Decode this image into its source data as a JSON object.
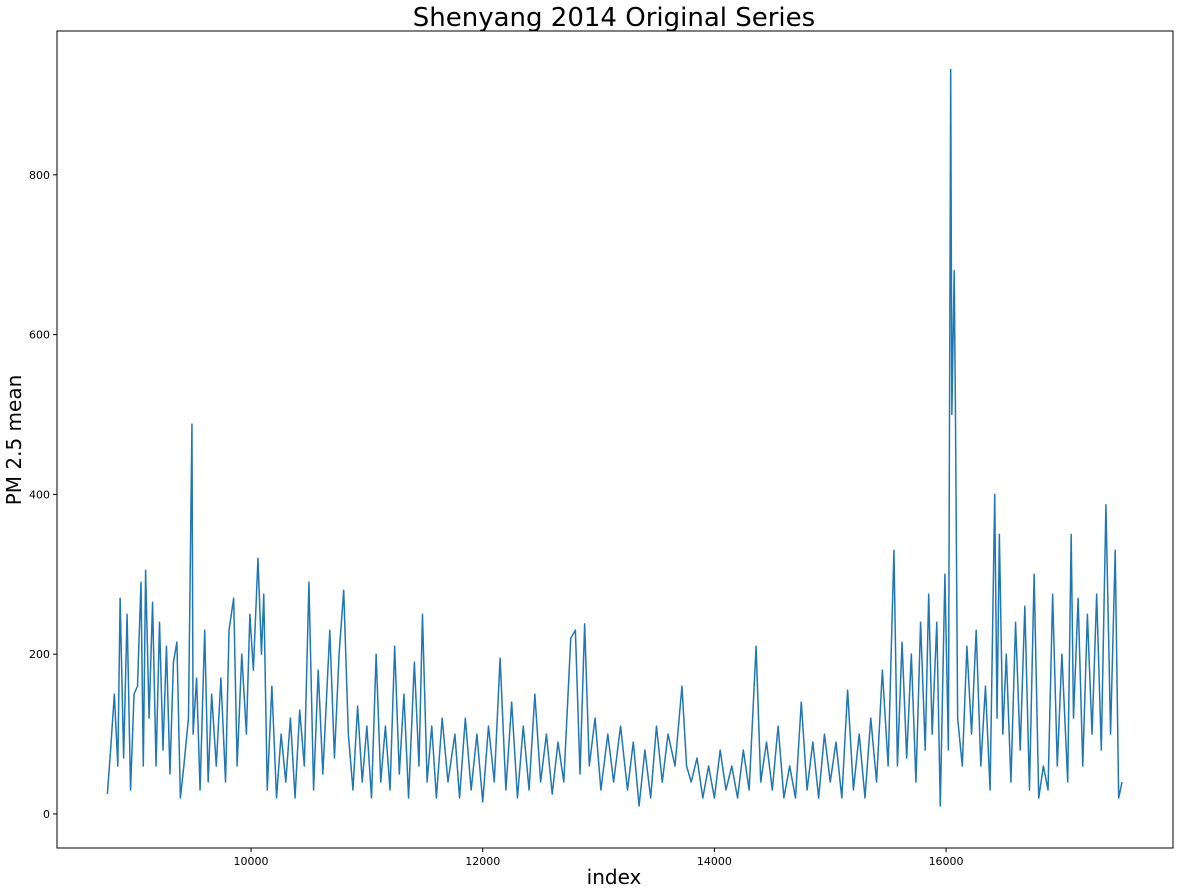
{
  "chart_data": {
    "type": "line",
    "title": "Shenyang 2014 Original Series",
    "x_label": "index",
    "y_label": "PM 2.5 mean",
    "x": [
      8760,
      8790,
      8820,
      8850,
      8870,
      8900,
      8930,
      8960,
      8990,
      9020,
      9050,
      9070,
      9090,
      9120,
      9150,
      9180,
      9210,
      9240,
      9270,
      9300,
      9330,
      9360,
      9390,
      9420,
      9460,
      9490,
      9500,
      9530,
      9560,
      9600,
      9630,
      9660,
      9700,
      9740,
      9780,
      9810,
      9850,
      9880,
      9920,
      9960,
      9990,
      10020,
      10060,
      10090,
      10110,
      10140,
      10180,
      10220,
      10260,
      10300,
      10340,
      10380,
      10420,
      10460,
      10500,
      10540,
      10580,
      10620,
      10680,
      10720,
      10760,
      10800,
      10840,
      10880,
      10920,
      10960,
      11000,
      11040,
      11080,
      11120,
      11160,
      11200,
      11240,
      11280,
      11320,
      11360,
      11410,
      11450,
      11480,
      11520,
      11560,
      11600,
      11650,
      11700,
      11760,
      11800,
      11850,
      11900,
      11950,
      12000,
      12050,
      12100,
      12150,
      12200,
      12250,
      12300,
      12350,
      12400,
      12450,
      12500,
      12550,
      12600,
      12650,
      12700,
      12760,
      12800,
      12840,
      12880,
      12920,
      12970,
      13020,
      13080,
      13130,
      13190,
      13250,
      13300,
      13350,
      13400,
      13450,
      13500,
      13550,
      13600,
      13660,
      13720,
      13760,
      13800,
      13850,
      13900,
      13950,
      14000,
      14050,
      14100,
      14150,
      14200,
      14250,
      14300,
      14360,
      14400,
      14450,
      14500,
      14550,
      14600,
      14650,
      14700,
      14750,
      14800,
      14850,
      14900,
      14950,
      15000,
      15050,
      15100,
      15150,
      15200,
      15250,
      15300,
      15350,
      15400,
      15450,
      15500,
      15550,
      15580,
      15620,
      15660,
      15700,
      15740,
      15780,
      15820,
      15850,
      15880,
      15920,
      15950,
      15990,
      16020,
      16040,
      16050,
      16070,
      16080,
      16100,
      16140,
      16180,
      16220,
      16260,
      16300,
      16340,
      16380,
      16420,
      16440,
      16460,
      16490,
      16520,
      16560,
      16600,
      16640,
      16680,
      16720,
      16760,
      16800,
      16840,
      16880,
      16920,
      16960,
      17000,
      17050,
      17080,
      17100,
      17140,
      17180,
      17220,
      17260,
      17300,
      17340,
      17380,
      17420,
      17460,
      17490,
      17519
    ],
    "series": [
      {
        "name": "PM 2.5 mean",
        "color": "#1f77b4",
        "values": [
          25,
          85,
          150,
          60,
          270,
          70,
          250,
          30,
          150,
          160,
          290,
          60,
          305,
          120,
          265,
          60,
          240,
          80,
          210,
          50,
          190,
          215,
          20,
          60,
          120,
          488,
          100,
          170,
          30,
          230,
          40,
          150,
          60,
          170,
          40,
          230,
          270,
          60,
          200,
          100,
          250,
          180,
          320,
          200,
          275,
          30,
          160,
          20,
          100,
          40,
          120,
          20,
          130,
          60,
          290,
          30,
          180,
          50,
          230,
          70,
          200,
          280,
          100,
          30,
          135,
          40,
          110,
          20,
          200,
          40,
          110,
          30,
          210,
          50,
          150,
          20,
          190,
          60,
          250,
          40,
          110,
          20,
          120,
          40,
          100,
          20,
          120,
          30,
          100,
          15,
          110,
          40,
          195,
          30,
          140,
          20,
          110,
          30,
          150,
          40,
          100,
          25,
          90,
          40,
          220,
          230,
          50,
          238,
          60,
          120,
          30,
          100,
          40,
          110,
          30,
          90,
          10,
          80,
          20,
          110,
          40,
          100,
          60,
          160,
          60,
          40,
          70,
          20,
          60,
          20,
          80,
          30,
          60,
          20,
          80,
          30,
          210,
          40,
          90,
          30,
          110,
          20,
          60,
          20,
          140,
          30,
          90,
          20,
          100,
          40,
          90,
          20,
          155,
          30,
          100,
          20,
          120,
          40,
          180,
          60,
          330,
          60,
          215,
          70,
          200,
          40,
          240,
          80,
          275,
          100,
          240,
          10,
          300,
          80,
          932,
          500,
          680,
          520,
          120,
          60,
          210,
          100,
          230,
          60,
          160,
          30,
          400,
          120,
          350,
          100,
          200,
          40,
          240,
          80,
          260,
          30,
          300,
          20,
          60,
          30,
          275,
          60,
          200,
          40,
          350,
          120,
          270,
          60,
          250,
          100,
          275,
          80,
          387,
          100,
          330,
          20,
          40
        ]
      }
    ],
    "xlim": [
      8325,
      17959
    ],
    "ylim": [
      -42.6,
      980
    ],
    "xticks": [
      10000,
      12000,
      14000,
      16000
    ],
    "yticks": [
      0,
      200,
      400,
      600,
      800
    ],
    "grid": false
  }
}
